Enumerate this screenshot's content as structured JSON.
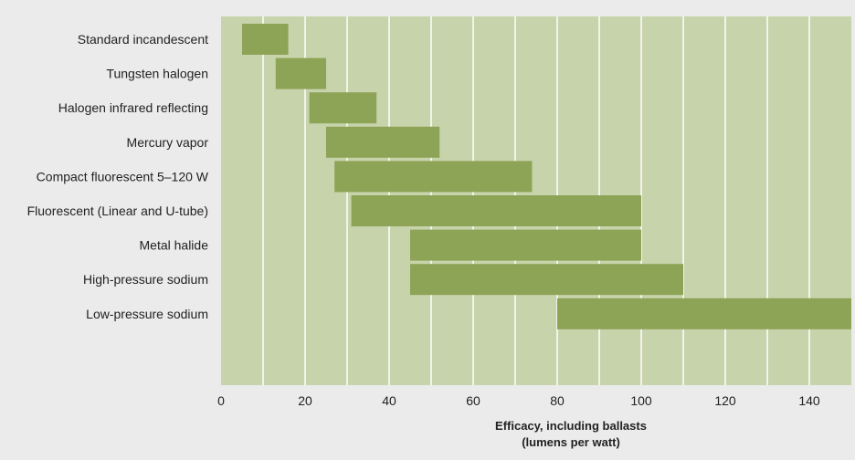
{
  "chart_data": {
    "type": "bar",
    "orientation": "horizontal-range",
    "categories": [
      "Standard incandescent",
      "Tungsten halogen",
      "Halogen infrared reflecting",
      "Mercury vapor",
      "Compact fluorescent 5–120 W",
      "Fluorescent (Linear and U-tube)",
      "Metal halide",
      "High-pressure sodium",
      "Low-pressure sodium"
    ],
    "ranges": [
      [
        5,
        16
      ],
      [
        13,
        25
      ],
      [
        21,
        37
      ],
      [
        25,
        52
      ],
      [
        27,
        74
      ],
      [
        31,
        100
      ],
      [
        45,
        100
      ],
      [
        45,
        110
      ],
      [
        80,
        150
      ]
    ],
    "xlabel_line1": "Efficacy, including ballasts",
    "xlabel_line2": "(lumens per watt)",
    "xlim": [
      0,
      150
    ],
    "xticks": [
      0,
      20,
      40,
      60,
      80,
      100,
      120,
      140
    ],
    "grid": "vertical every 10",
    "colors": {
      "bar": "#8da356",
      "plot_bg": "#c7d3ab",
      "grid": "#ffffff",
      "page_bg": "#ebebeb"
    }
  }
}
